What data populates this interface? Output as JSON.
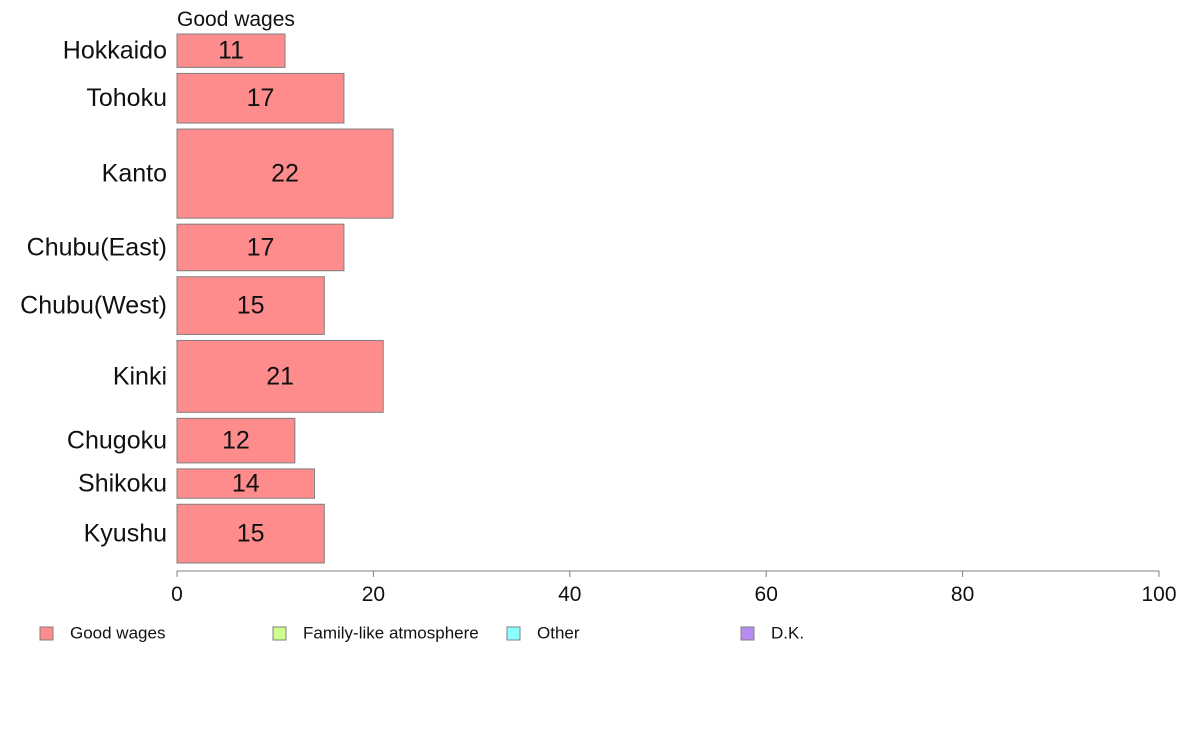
{
  "chart_data": {
    "type": "bar",
    "orientation": "horizontal",
    "panel_title": "Good wages",
    "categories": [
      "Hokkaido",
      "Tohoku",
      "Kanto",
      "Chubu(East)",
      "Chubu(West)",
      "Kinki",
      "Chugoku",
      "Shikoku",
      "Kyushu"
    ],
    "bar_relative_thickness": [
      0.33,
      0.49,
      0.88,
      0.46,
      0.57,
      0.71,
      0.44,
      0.29,
      0.58
    ],
    "series": [
      {
        "name": "Good wages",
        "color": "#ff8c8c",
        "values": [
          11,
          17,
          22,
          17,
          15,
          21,
          12,
          14,
          15
        ]
      }
    ],
    "xlim": [
      0,
      100
    ],
    "xticks": [
      0,
      20,
      40,
      60,
      80,
      100
    ],
    "grid": false,
    "legend_position": "bottom",
    "legend": [
      {
        "name": "Good wages",
        "color": "#ff8c8c"
      },
      {
        "name": "Family-like atmosphere",
        "color": "#ccff8c"
      },
      {
        "name": "Other",
        "color": "#8cffff"
      },
      {
        "name": "D.K.",
        "color": "#b98cf5"
      }
    ]
  }
}
